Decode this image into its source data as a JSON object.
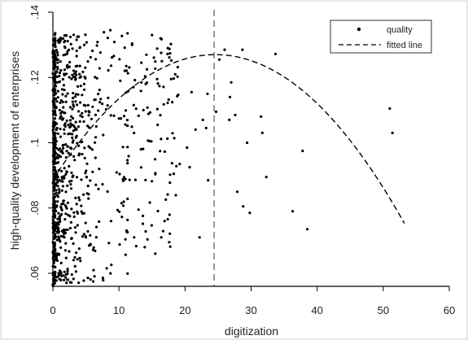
{
  "chart_data": {
    "type": "scatter",
    "title": "",
    "xlabel": "digitization",
    "ylabel": "high-quality development of enterprises",
    "xlim": [
      0,
      60
    ],
    "ylim": [
      0.056,
      0.14
    ],
    "x_ticks": [
      0,
      10,
      20,
      30,
      40,
      50,
      60
    ],
    "x_tick_labels": [
      "0",
      "10",
      "20",
      "30",
      "40",
      "50",
      "60"
    ],
    "y_ticks": [
      0.06,
      0.08,
      0.1,
      0.12,
      0.14
    ],
    "y_tick_labels": [
      ".06",
      ".08",
      ".1",
      ".12",
      ".14"
    ],
    "grid": false,
    "legend": {
      "position": "top-right",
      "entries": [
        {
          "label": "quality",
          "marker": "dot"
        },
        {
          "label": "fitted line",
          "marker": "dashed-line"
        }
      ]
    },
    "reference_line": {
      "axis": "x",
      "value": 24.4,
      "style": "dashed"
    },
    "fitted_curve": {
      "form": "quadratic",
      "vertex_x": 24.6,
      "vertex_y": 0.127,
      "curvature": -6.32e-05,
      "x_range": [
        0,
        53.2
      ]
    },
    "series": [
      {
        "name": "quality",
        "points": [
          [
            51.0,
            0.1105
          ],
          [
            51.4,
            0.103
          ],
          [
            38.5,
            0.0735
          ],
          [
            36.3,
            0.079
          ],
          [
            37.8,
            0.0975
          ],
          [
            32.3,
            0.0895
          ],
          [
            31.5,
            0.108
          ],
          [
            31.7,
            0.103
          ],
          [
            33.7,
            0.1272
          ],
          [
            28.7,
            0.1285
          ],
          [
            29.4,
            0.1
          ],
          [
            29.8,
            0.0785
          ],
          [
            28.8,
            0.0805
          ],
          [
            26.7,
            0.107
          ],
          [
            27.6,
            0.1085
          ],
          [
            27.0,
            0.1185
          ],
          [
            26.8,
            0.114
          ],
          [
            26.0,
            0.1285
          ],
          [
            25.2,
            0.1255
          ],
          [
            24.7,
            0.1095
          ],
          [
            27.9,
            0.085
          ],
          [
            23.4,
            0.115
          ],
          [
            22.7,
            0.107
          ],
          [
            23.2,
            0.1045
          ],
          [
            23.5,
            0.0885
          ],
          [
            22.2,
            0.071
          ],
          [
            21.0,
            0.1155
          ],
          [
            20.3,
            0.0985
          ],
          [
            17.6,
            0.0695
          ],
          [
            16.4,
            0.071
          ],
          [
            15.5,
            0.066
          ],
          [
            16.9,
            0.076
          ],
          [
            15.0,
            0.133
          ],
          [
            16.3,
            0.132
          ],
          [
            17.4,
            0.129
          ],
          [
            16.5,
            0.125
          ],
          [
            17.9,
            0.1195
          ],
          [
            18.3,
            0.0905
          ],
          [
            19.2,
            0.0935
          ],
          [
            20.7,
            0.0925
          ],
          [
            21.6,
            0.104
          ],
          [
            12.3,
            0.071
          ],
          [
            13.9,
            0.068
          ],
          [
            8.7,
            0.1345
          ],
          [
            12.0,
            0.13
          ],
          [
            11.1,
            0.1235
          ],
          [
            13.7,
            0.11
          ],
          [
            14.6,
            0.1005
          ],
          [
            8.8,
            0.076
          ],
          [
            6.1,
            0.0575
          ],
          [
            5.5,
            0.0685
          ],
          [
            3.9,
            0.1325
          ]
        ]
      }
    ]
  }
}
